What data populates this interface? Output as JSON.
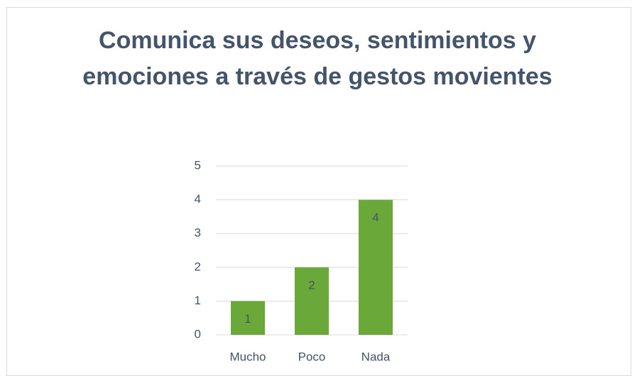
{
  "chart_data": {
    "type": "bar",
    "title": "Comunica sus deseos, sentimientos y emociones a través de gestos movientes",
    "categories": [
      "Mucho",
      "Poco",
      "Nada"
    ],
    "values": [
      1,
      2,
      4
    ],
    "color": "#6aa83a",
    "ylim": [
      0,
      5
    ],
    "yticks": [
      0,
      1,
      2,
      3,
      4,
      5
    ],
    "grid": true
  }
}
